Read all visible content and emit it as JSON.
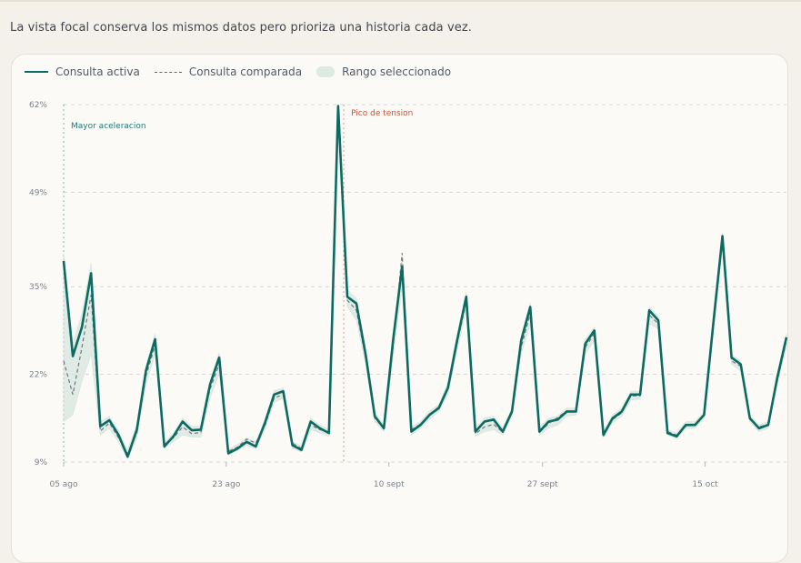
{
  "caption": "La vista focal conserva los mismos datos pero prioriza una historia cada vez.",
  "colors": {
    "active": "#0c6b60",
    "compared": "#5a6470",
    "range": "#d7e7e0",
    "grid": "#d9d6cf",
    "annotation_focus": "#1f7a70",
    "annotation_peak": "#c0563a"
  },
  "legend": {
    "active": "Consulta activa",
    "compared": "Consulta comparada",
    "range": "Rango seleccionado"
  },
  "chart_data": {
    "type": "line",
    "y_unit": "%",
    "ylim": [
      9,
      62
    ],
    "yticks": [
      9,
      22,
      35,
      49,
      62
    ],
    "ytick_labels": [
      "9%",
      "22%",
      "35%",
      "49%",
      "62%"
    ],
    "grid": true,
    "legend_position": "top-left",
    "xlim": [
      "2024-08-05",
      "2024-10-24"
    ],
    "xticks": [
      "2024-08-05",
      "2024-08-23",
      "2024-09-10",
      "2024-09-27",
      "2024-10-15"
    ],
    "xtick_labels": [
      "05 ago",
      "23 ago",
      "10 sept",
      "27 sept",
      "15 oct"
    ],
    "annotations": [
      {
        "date": "2024-08-05",
        "label": "Mayor aceleracion",
        "kind": "focus"
      },
      {
        "date": "2024-08-36",
        "label": "Pico de tension",
        "kind": "peak"
      }
    ],
    "series": [
      {
        "name": "Consulta activa",
        "style": "solid",
        "values": [
          38.8,
          24.7,
          29.0,
          37.0,
          14.3,
          15.2,
          13.0,
          9.8,
          13.8,
          22.6,
          27.2,
          11.3,
          12.8,
          15.0,
          13.7,
          13.8,
          20.5,
          24.5,
          10.3,
          11.0,
          12.0,
          11.3,
          14.8,
          19.0,
          19.5,
          11.5,
          10.8,
          15.0,
          14.0,
          13.3,
          61.8,
          33.5,
          32.5,
          25.0,
          15.8,
          14.0,
          27.0,
          38.0,
          13.5,
          14.5,
          16.0,
          17.0,
          20.0,
          27.0,
          33.5,
          13.5,
          15.0,
          15.3,
          13.5,
          16.5,
          27.0,
          32.0,
          13.5,
          15.0,
          15.3,
          16.5,
          16.5,
          26.5,
          28.5,
          13.0,
          15.5,
          16.5,
          19.0,
          19.0,
          31.5,
          30.0,
          13.3,
          12.8,
          14.5,
          14.5,
          16.0,
          29.5,
          42.5,
          24.5,
          23.5,
          15.5,
          14.0,
          14.5,
          21.5,
          27.5
        ]
      },
      {
        "name": "Consulta comparada",
        "style": "dashed",
        "values": [
          24.0,
          19.0,
          26.0,
          33.8,
          13.6,
          14.8,
          12.6,
          10.2,
          13.3,
          21.8,
          26.3,
          11.6,
          12.6,
          14.2,
          13.2,
          13.4,
          19.8,
          23.5,
          10.6,
          11.2,
          12.4,
          11.8,
          14.4,
          18.5,
          19.0,
          11.8,
          11.0,
          14.5,
          13.8,
          13.5,
          61.2,
          33.0,
          31.5,
          24.5,
          15.5,
          14.0,
          26.0,
          40.0,
          13.8,
          14.6,
          16.0,
          17.2,
          20.0,
          26.5,
          32.8,
          13.2,
          14.2,
          14.6,
          13.4,
          16.3,
          26.0,
          31.0,
          13.4,
          14.7,
          15.6,
          16.6,
          16.5,
          26.0,
          28.0,
          13.2,
          15.3,
          16.3,
          18.8,
          18.8,
          30.8,
          29.5,
          13.5,
          13.0,
          14.3,
          14.5,
          16.0,
          29.0,
          42.0,
          24.0,
          23.2,
          15.3,
          14.2,
          14.6,
          21.0,
          27.0
        ]
      },
      {
        "name": "Rango seleccionado",
        "style": "band",
        "lower": [
          15.0,
          16.0,
          21.0,
          25.0,
          13.0,
          14.0,
          12.0,
          9.5,
          12.5,
          20.5,
          25.0,
          11.0,
          12.0,
          13.0,
          12.7,
          12.7,
          18.5,
          22.0,
          10.0,
          10.7,
          11.5,
          11.0,
          13.8,
          17.8,
          18.5,
          11.0,
          10.5,
          13.8,
          13.3,
          12.8,
          59.5,
          32.0,
          30.0,
          23.5,
          15.0,
          13.5,
          24.5,
          35.0,
          13.0,
          14.0,
          15.3,
          16.5,
          19.0,
          25.5,
          31.5,
          12.8,
          13.5,
          13.8,
          13.0,
          15.8,
          25.0,
          29.5,
          13.0,
          14.0,
          14.5,
          15.8,
          16.0,
          25.0,
          27.0,
          12.7,
          14.8,
          15.8,
          18.2,
          18.3,
          29.5,
          28.8,
          13.0,
          12.5,
          14.0,
          14.0,
          15.5,
          28.0,
          41.0,
          23.5,
          22.5,
          15.0,
          13.5,
          14.0,
          20.5,
          26.0
        ],
        "upper": [
          40.0,
          26.5,
          31.0,
          38.5,
          15.0,
          15.8,
          13.6,
          10.8,
          14.5,
          23.3,
          28.0,
          11.8,
          13.3,
          15.5,
          14.3,
          14.3,
          21.0,
          25.2,
          10.9,
          11.6,
          12.6,
          12.0,
          15.3,
          19.6,
          20.0,
          12.0,
          11.4,
          15.5,
          14.5,
          13.8,
          62.0,
          34.5,
          33.3,
          25.5,
          16.3,
          14.6,
          27.8,
          39.5,
          14.2,
          15.0,
          16.6,
          17.5,
          20.8,
          27.7,
          34.2,
          14.0,
          15.6,
          15.8,
          14.1,
          17.0,
          27.7,
          32.6,
          14.2,
          15.5,
          15.8,
          17.0,
          17.0,
          27.2,
          29.0,
          13.6,
          16.0,
          17.0,
          19.5,
          19.5,
          32.0,
          30.6,
          13.8,
          13.3,
          15.0,
          15.0,
          16.5,
          30.0,
          43.0,
          25.0,
          24.0,
          16.0,
          14.5,
          15.0,
          22.0,
          28.0
        ]
      }
    ]
  }
}
